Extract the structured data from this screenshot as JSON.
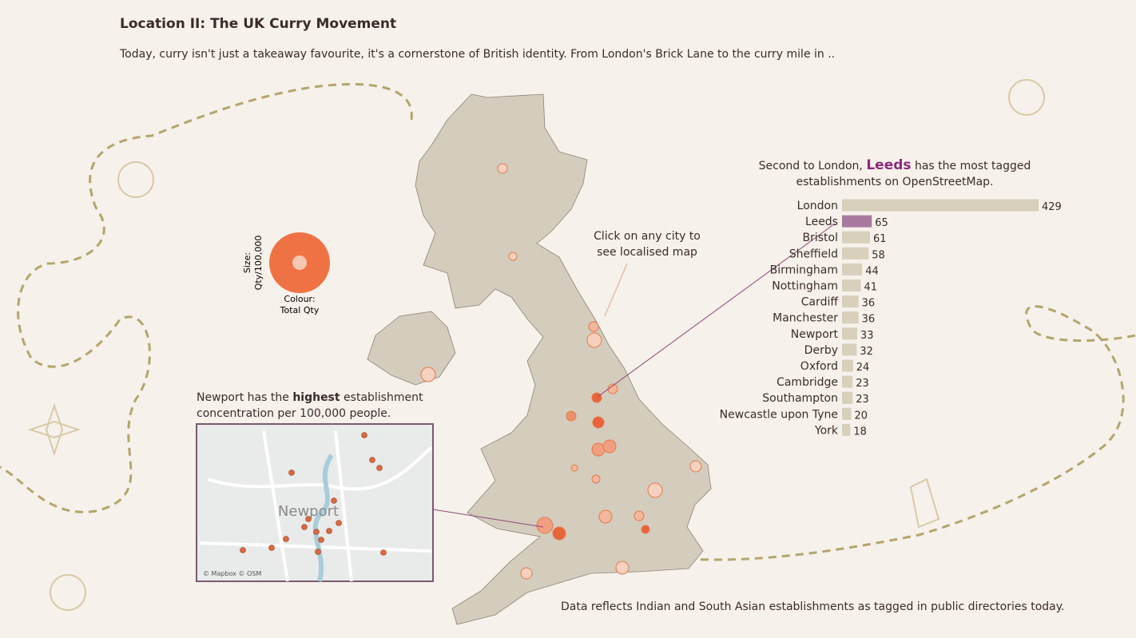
{
  "header": {
    "title": "Location II: The UK Curry Movement",
    "subtitle": "Today, curry isn't just a takeaway favourite, it's a cornerstone of British identity. From London's Brick Lane to the curry mile in .."
  },
  "legend": {
    "size_label": "Size:",
    "size_field": "Qty/100,000",
    "colour_label": "Colour:",
    "colour_field": "Total Qty"
  },
  "annotations": {
    "click": "Click on any city to see localised map",
    "newport": [
      "Newport has the ",
      "highest",
      " establishment concentration per 100,000 people."
    ],
    "footer": "Data reflects Indian and South Asian establishments as tagged in public directories today."
  },
  "inset": {
    "city": "Newport",
    "credit": "© Mapbox © OSM"
  },
  "chart_data": {
    "type": "hbar",
    "title_parts": [
      "Second to London, ",
      "Leeds",
      " has the most tagged establishments on OpenStreetMap."
    ],
    "categories": [
      "London",
      "Leeds",
      "Bristol",
      "Sheffield",
      "Birmingham",
      "Nottingham",
      "Cardiff",
      "Manchester",
      "Newport",
      "Derby",
      "Oxford",
      "Cambridge",
      "Southampton",
      "Newcastle upon Tyne",
      "York"
    ],
    "values": [
      429,
      65,
      61,
      58,
      44,
      41,
      36,
      36,
      33,
      32,
      24,
      23,
      23,
      20,
      18
    ],
    "colors": [
      "#d8cfbc",
      "#a9789f",
      "#d8cfbc",
      "#d8cfbc",
      "#d8cfbc",
      "#d8cfbc",
      "#d8cfbc",
      "#d8cfbc",
      "#d8cfbc",
      "#d8cfbc",
      "#d8cfbc",
      "#d8cfbc",
      "#d8cfbc",
      "#d8cfbc",
      "#d8cfbc"
    ]
  }
}
